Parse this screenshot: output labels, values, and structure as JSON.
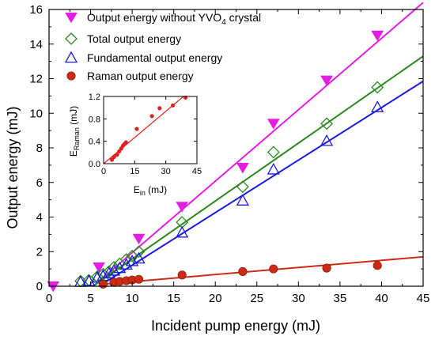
{
  "chart_data": {
    "type": "scatter",
    "xlabel": "Incident pump energy (mJ)",
    "ylabel": "Output energy (mJ)",
    "xlim": [
      0,
      45
    ],
    "ylim": [
      0,
      16
    ],
    "xticks": [
      "0",
      "5",
      "10",
      "15",
      "20",
      "25",
      "30",
      "35",
      "40",
      "45"
    ],
    "yticks": [
      "0",
      "2",
      "4",
      "6",
      "8",
      "10",
      "12",
      "14",
      "16"
    ],
    "legend_position": "top-left",
    "series": [
      {
        "name": "Output energy without YVO",
        "name_sub": "4",
        "name_suffix": " crystal",
        "marker": "triangle-down",
        "color": "#e21ee2",
        "points": [
          [
            0.5,
            0.0
          ],
          [
            6.0,
            1.1
          ],
          [
            10.8,
            2.75
          ],
          [
            16.0,
            4.6
          ],
          [
            23.3,
            6.85
          ],
          [
            27.0,
            9.4
          ],
          [
            33.4,
            11.9
          ],
          [
            39.5,
            14.5
          ]
        ],
        "fit": [
          [
            5.3,
            0.0
          ],
          [
            45.0,
            16.4
          ]
        ]
      },
      {
        "name": "Total output energy",
        "marker": "diamond-open",
        "color": "#2a8a1c",
        "points": [
          [
            3.8,
            0.3
          ],
          [
            4.8,
            0.35
          ],
          [
            5.8,
            0.55
          ],
          [
            6.5,
            0.7
          ],
          [
            7.2,
            0.85
          ],
          [
            7.8,
            1.1
          ],
          [
            8.5,
            1.3
          ],
          [
            9.3,
            1.55
          ],
          [
            10.0,
            1.75
          ],
          [
            10.8,
            2.0
          ],
          [
            16.0,
            3.7
          ],
          [
            23.3,
            5.75
          ],
          [
            27.0,
            7.75
          ],
          [
            33.4,
            9.4
          ],
          [
            39.5,
            11.5
          ]
        ],
        "fit": [
          [
            5.3,
            0.0
          ],
          [
            45.0,
            13.3
          ]
        ]
      },
      {
        "name": "Fundamental output energy",
        "marker": "triangle-up-open",
        "color": "#1a1ae0",
        "points": [
          [
            3.8,
            0.25
          ],
          [
            4.8,
            0.3
          ],
          [
            5.8,
            0.5
          ],
          [
            6.5,
            0.6
          ],
          [
            7.2,
            0.75
          ],
          [
            7.8,
            0.9
          ],
          [
            8.5,
            1.05
          ],
          [
            9.3,
            1.25
          ],
          [
            10.0,
            1.45
          ],
          [
            10.8,
            1.6
          ],
          [
            16.0,
            3.1
          ],
          [
            23.3,
            4.95
          ],
          [
            27.0,
            6.75
          ],
          [
            33.4,
            8.4
          ],
          [
            39.5,
            10.35
          ]
        ],
        "fit": [
          [
            6.0,
            0.0
          ],
          [
            45.0,
            11.85
          ]
        ]
      },
      {
        "name": "Raman output energy",
        "marker": "circle-filled",
        "color": "#cc2a14",
        "points": [
          [
            6.5,
            0.12
          ],
          [
            7.8,
            0.22
          ],
          [
            8.5,
            0.28
          ],
          [
            9.3,
            0.32
          ],
          [
            10.0,
            0.36
          ],
          [
            10.8,
            0.4
          ],
          [
            16.0,
            0.65
          ],
          [
            23.3,
            0.85
          ],
          [
            27.0,
            1.0
          ],
          [
            33.4,
            1.05
          ],
          [
            39.5,
            1.2
          ]
        ],
        "fit": [
          [
            6.0,
            0.1
          ],
          [
            45.0,
            1.7
          ]
        ]
      }
    ],
    "inset": {
      "xlabel_main": "E",
      "xlabel_sub": "in",
      "xlabel_unit": " (mJ)",
      "ylabel_main": "E",
      "ylabel_sub": "Raman",
      "ylabel_unit": " (mJ)",
      "xlim": [
        0,
        45
      ],
      "ylim": [
        0,
        1.2
      ],
      "xticks": [
        "0",
        "15",
        "30",
        "45"
      ],
      "yticks": [
        "0.0",
        "0.4",
        "0.8",
        "1.2"
      ],
      "color": "#e02020",
      "points": [
        [
          4.0,
          0.07
        ],
        [
          5.0,
          0.12
        ],
        [
          6.5,
          0.16
        ],
        [
          7.5,
          0.22
        ],
        [
          8.5,
          0.27
        ],
        [
          9.3,
          0.32
        ],
        [
          10.0,
          0.35
        ],
        [
          10.8,
          0.38
        ],
        [
          16.0,
          0.62
        ],
        [
          23.3,
          0.85
        ],
        [
          27.0,
          0.99
        ],
        [
          33.4,
          1.04
        ],
        [
          39.5,
          1.18
        ]
      ],
      "fit": [
        [
          0.0,
          0.0
        ],
        [
          38.5,
          1.2
        ]
      ]
    }
  }
}
